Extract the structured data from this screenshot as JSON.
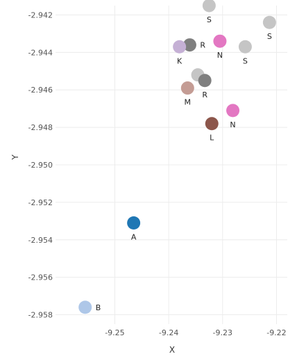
{
  "chart_data": {
    "type": "scatter",
    "title": "",
    "xlabel": "X",
    "ylabel": "Y",
    "xlim": [
      -9.261,
      -9.218
    ],
    "ylim": [
      -2.9585,
      -2.9415
    ],
    "x_ticks": [
      -9.25,
      -9.24,
      -9.23,
      -9.22
    ],
    "x_tick_labels": [
      "-9.25",
      "-9.24",
      "-9.23",
      "-9.22"
    ],
    "y_ticks": [
      -2.942,
      -2.944,
      -2.946,
      -2.948,
      -2.95,
      -2.952,
      -2.954,
      -2.956,
      -2.958
    ],
    "y_tick_labels": [
      "-2.942",
      "-2.944",
      "-2.946",
      "-2.948",
      "-2.950",
      "-2.952",
      "-2.954",
      "-2.956",
      "-2.958"
    ],
    "grid": true,
    "points": [
      {
        "label": "S",
        "x": -9.2325,
        "y": -2.9415,
        "color": "#c5c5c5",
        "label_pos": "below"
      },
      {
        "label": "S",
        "x": -9.2213,
        "y": -2.9424,
        "color": "#c5c5c5",
        "label_pos": "below"
      },
      {
        "label": "N",
        "x": -9.2305,
        "y": -2.9434,
        "color": "#e377c2",
        "label_pos": "below"
      },
      {
        "label": "S",
        "x": -9.2258,
        "y": -2.9437,
        "color": "#c5c5c5",
        "label_pos": "below"
      },
      {
        "label": "R",
        "x": -9.2361,
        "y": -2.9436,
        "color": "#7f7f7f",
        "label_pos": "right"
      },
      {
        "label": "K",
        "x": -9.238,
        "y": -2.9437,
        "color": "#c5b0d5",
        "label_pos": "below"
      },
      {
        "label": "",
        "x": -9.2346,
        "y": -2.9452,
        "color": "#c5c5c5",
        "label_pos": "none"
      },
      {
        "label": "R",
        "x": -9.2333,
        "y": -2.9455,
        "color": "#7f7f7f",
        "label_pos": "below"
      },
      {
        "label": "M",
        "x": -9.2365,
        "y": -2.9459,
        "color": "#c49c94",
        "label_pos": "below"
      },
      {
        "label": "N",
        "x": -9.2281,
        "y": -2.9471,
        "color": "#e377c2",
        "label_pos": "below"
      },
      {
        "label": "L",
        "x": -9.232,
        "y": -2.9478,
        "color": "#8c564b",
        "label_pos": "below"
      },
      {
        "label": "A",
        "x": -9.2465,
        "y": -2.9531,
        "color": "#1f77b4",
        "label_pos": "below"
      },
      {
        "label": "B",
        "x": -9.2555,
        "y": -2.9576,
        "color": "#aec7e8",
        "label_pos": "right"
      }
    ]
  }
}
